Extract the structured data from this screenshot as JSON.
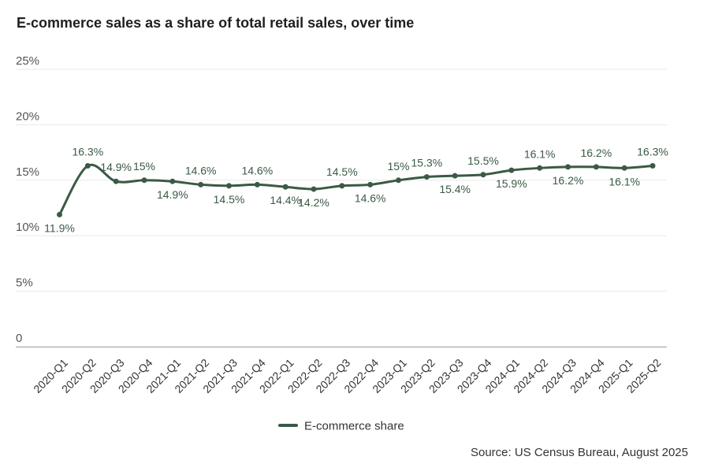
{
  "chart_data": {
    "type": "line",
    "title": "E-commerce sales as a share of total retail sales, over time",
    "xlabel": "",
    "ylabel": "",
    "ylim": [
      0,
      25
    ],
    "yticks": [
      {
        "value": 0,
        "label": "0"
      },
      {
        "value": 5,
        "label": "5%"
      },
      {
        "value": 10,
        "label": "10%"
      },
      {
        "value": 15,
        "label": "15%"
      },
      {
        "value": 20,
        "label": "20%"
      },
      {
        "value": 25,
        "label": "25%"
      }
    ],
    "categories": [
      "2020-Q1",
      "2020-Q2",
      "2020-Q3",
      "2020-Q4",
      "2021-Q1",
      "2021-Q2",
      "2021-Q3",
      "2021-Q4",
      "2022-Q1",
      "2022-Q2",
      "2022-Q3",
      "2022-Q4",
      "2023-Q1",
      "2023-Q2",
      "2023-Q3",
      "2023-Q4",
      "2024-Q1",
      "2024-Q2",
      "2024-Q3",
      "2024-Q4",
      "2025-Q1",
      "2025-Q2"
    ],
    "series": [
      {
        "name": "E-commerce share",
        "color": "#3a5a45",
        "values": [
          11.9,
          16.3,
          14.9,
          15,
          14.9,
          14.6,
          14.5,
          14.6,
          14.4,
          14.2,
          14.5,
          14.6,
          15,
          15.3,
          15.4,
          15.5,
          15.9,
          16.1,
          16.2,
          16.2,
          16.1,
          16.3
        ],
        "labels": [
          "11.9%",
          "16.3%",
          "14.9%",
          "15%",
          "14.9%",
          "14.6%",
          "14.5%",
          "14.6%",
          "14.4%",
          "14.2%",
          "14.5%",
          "14.6%",
          "15%",
          "15.3%",
          "15.4%",
          "15.5%",
          "15.9%",
          "16.1%",
          "16.2%",
          "16.2%",
          "16.1%",
          "16.3%"
        ]
      }
    ],
    "legend": "bottom-center",
    "grid": true
  },
  "source": "Source: US Census Bureau, August 2025"
}
